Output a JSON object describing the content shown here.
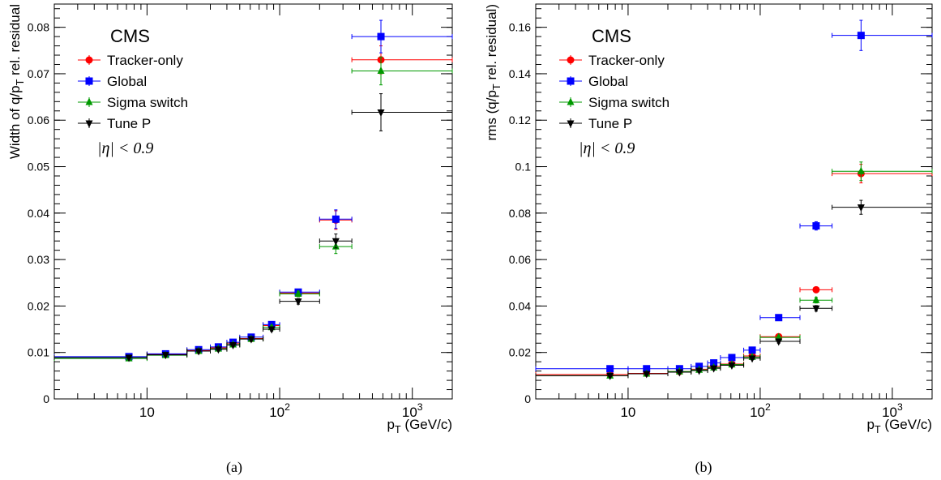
{
  "figure": {
    "panels": [
      "(a)",
      "(b)"
    ]
  },
  "legend_text": {
    "experiment": "CMS",
    "eta_cut": "|η| < 0.9"
  },
  "chart_data": [
    {
      "type": "scatter",
      "panel_label": "(a)",
      "ylabel": "Width of q/p_T rel. residual",
      "xlabel": "p_T (GeV/c)",
      "xscale": "log",
      "xlim": [
        2.0,
        2000
      ],
      "ylim": [
        0,
        0.085
      ],
      "yticks": [
        "0",
        "0.01",
        "0.02",
        "0.03",
        "0.04",
        "0.05",
        "0.06",
        "0.07",
        "0.08"
      ],
      "xticks": [
        "10",
        "10^2",
        "10^3"
      ],
      "legend_position": "top-left",
      "bins": [
        [
          2,
          10
        ],
        [
          10,
          20
        ],
        [
          20,
          30
        ],
        [
          30,
          40
        ],
        [
          40,
          50
        ],
        [
          50,
          75
        ],
        [
          75,
          100
        ],
        [
          100,
          200
        ],
        [
          200,
          350
        ],
        [
          350,
          2000
        ]
      ],
      "series": [
        {
          "name": "Tracker-only",
          "color": "#ff0000",
          "marker": "circle",
          "x": [
            7.3,
            13.8,
            24.5,
            34.5,
            44.5,
            61,
            87,
            138,
            265,
            580
          ],
          "y": [
            0.0089,
            0.0096,
            0.0104,
            0.011,
            0.012,
            0.013,
            0.0158,
            0.0228,
            0.0385,
            0.073
          ],
          "yerr": [
            0.0002,
            0.0002,
            0.0002,
            0.0002,
            0.0002,
            0.0003,
            0.0004,
            0.0006,
            0.002,
            0.003
          ]
        },
        {
          "name": "Global",
          "color": "#0000ff",
          "marker": "square",
          "x": [
            7.3,
            13.8,
            24.5,
            34.5,
            44.5,
            61,
            87,
            138,
            265,
            580
          ],
          "y": [
            0.0091,
            0.0097,
            0.0106,
            0.0112,
            0.0122,
            0.0133,
            0.016,
            0.023,
            0.0387,
            0.078
          ],
          "yerr": [
            0.0002,
            0.0002,
            0.0002,
            0.0002,
            0.0002,
            0.0003,
            0.0004,
            0.0006,
            0.002,
            0.0035
          ]
        },
        {
          "name": "Sigma switch",
          "color": "#009900",
          "marker": "triangle-up",
          "x": [
            7.3,
            13.8,
            24.5,
            34.5,
            44.5,
            61,
            87,
            138,
            265,
            580
          ],
          "y": [
            0.0087,
            0.0094,
            0.0103,
            0.0108,
            0.0117,
            0.0129,
            0.0154,
            0.0226,
            0.0328,
            0.0706
          ],
          "yerr": [
            0.0002,
            0.0002,
            0.0002,
            0.0002,
            0.0002,
            0.0003,
            0.0004,
            0.0006,
            0.0015,
            0.003
          ]
        },
        {
          "name": "Tune P",
          "color": "#000000",
          "marker": "triangle-down",
          "x": [
            7.3,
            13.8,
            24.5,
            34.5,
            44.5,
            61,
            87,
            138,
            265,
            580
          ],
          "y": [
            0.0089,
            0.0095,
            0.0103,
            0.0107,
            0.0116,
            0.0129,
            0.015,
            0.021,
            0.034,
            0.0617
          ],
          "yerr": [
            0.0002,
            0.0002,
            0.0002,
            0.0002,
            0.0002,
            0.0003,
            0.0004,
            0.0006,
            0.0015,
            0.004
          ]
        }
      ]
    },
    {
      "type": "scatter",
      "panel_label": "(b)",
      "ylabel": "rms (q/p_T rel. residual)",
      "xlabel": "p_T (GeV/c)",
      "xscale": "log",
      "xlim": [
        2.0,
        2000
      ],
      "ylim": [
        0,
        0.17
      ],
      "yticks": [
        "0",
        "0.02",
        "0.04",
        "0.06",
        "0.08",
        "0.1",
        "0.12",
        "0.14",
        "0.16"
      ],
      "xticks": [
        "10",
        "10^2",
        "10^3"
      ],
      "legend_position": "top-left",
      "bins": [
        [
          2,
          10
        ],
        [
          10,
          20
        ],
        [
          20,
          30
        ],
        [
          30,
          40
        ],
        [
          40,
          50
        ],
        [
          50,
          75
        ],
        [
          75,
          100
        ],
        [
          100,
          200
        ],
        [
          200,
          350
        ],
        [
          350,
          2000
        ]
      ],
      "series": [
        {
          "name": "Tracker-only",
          "color": "#ff0000",
          "marker": "circle",
          "x": [
            7.3,
            13.8,
            24.5,
            34.5,
            44.5,
            61,
            87,
            138,
            265,
            580
          ],
          "y": [
            0.0105,
            0.011,
            0.0118,
            0.0128,
            0.014,
            0.015,
            0.0185,
            0.0268,
            0.047,
            0.097
          ],
          "yerr": [
            0.0004,
            0.0004,
            0.0004,
            0.0004,
            0.0005,
            0.0005,
            0.0006,
            0.0008,
            0.0012,
            0.004
          ]
        },
        {
          "name": "Global",
          "color": "#0000ff",
          "marker": "square",
          "x": [
            7.3,
            13.8,
            24.5,
            34.5,
            44.5,
            61,
            87,
            138,
            265,
            580
          ],
          "y": [
            0.013,
            0.013,
            0.013,
            0.014,
            0.0155,
            0.0178,
            0.021,
            0.035,
            0.0745,
            0.1565
          ],
          "yerr": [
            0.0004,
            0.0004,
            0.0004,
            0.0004,
            0.0005,
            0.0005,
            0.0006,
            0.0008,
            0.0018,
            0.0065
          ]
        },
        {
          "name": "Sigma switch",
          "color": "#009900",
          "marker": "triangle-up",
          "x": [
            7.3,
            13.8,
            24.5,
            34.5,
            44.5,
            61,
            87,
            138,
            265,
            580
          ],
          "y": [
            0.01,
            0.0108,
            0.0118,
            0.0125,
            0.0135,
            0.0148,
            0.018,
            0.0265,
            0.0425,
            0.098
          ],
          "yerr": [
            0.0004,
            0.0004,
            0.0004,
            0.0004,
            0.0005,
            0.0005,
            0.0006,
            0.0008,
            0.0012,
            0.004
          ]
        },
        {
          "name": "Tune P",
          "color": "#000000",
          "marker": "triangle-down",
          "x": [
            7.3,
            13.8,
            24.5,
            34.5,
            44.5,
            61,
            87,
            138,
            265,
            580
          ],
          "y": [
            0.01,
            0.0108,
            0.0115,
            0.0122,
            0.0132,
            0.0145,
            0.0175,
            0.0248,
            0.039,
            0.0825
          ],
          "yerr": [
            0.0004,
            0.0004,
            0.0004,
            0.0004,
            0.0005,
            0.0005,
            0.0006,
            0.0008,
            0.0012,
            0.003
          ]
        }
      ]
    }
  ]
}
